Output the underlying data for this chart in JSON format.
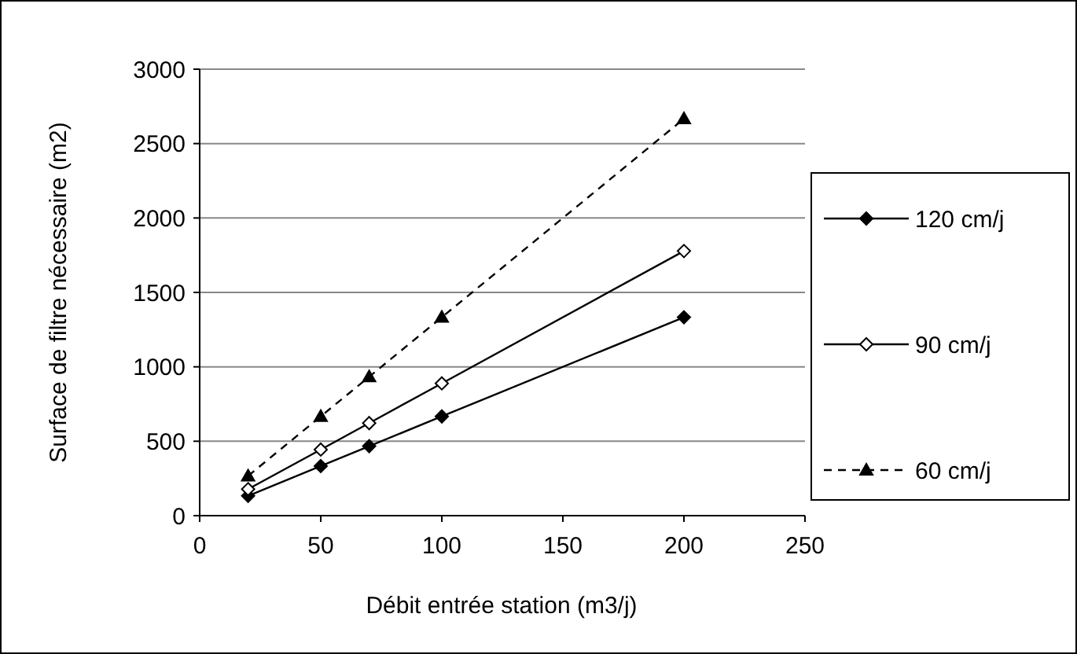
{
  "chart_data": {
    "type": "line",
    "xlabel": "Débit entrée station (m3/j)",
    "ylabel": "Surface de filtre nécessaire (m2)",
    "x": [
      20,
      50,
      70,
      100,
      200
    ],
    "series": [
      {
        "name": "120 cm/j",
        "color": "#000000",
        "marker": "diamond",
        "line_style": "solid",
        "values": [
          133,
          333,
          467,
          667,
          1333
        ]
      },
      {
        "name": "90 cm/j",
        "color": "#000000",
        "marker": "diamond_open",
        "line_style": "solid",
        "values": [
          178,
          444,
          622,
          889,
          1778
        ]
      },
      {
        "name": "60 cm/j",
        "color": "#000000",
        "marker": "triangle",
        "line_style": "dashed",
        "values": [
          267,
          667,
          933,
          1333,
          2667
        ]
      }
    ],
    "xlim": [
      0,
      250
    ],
    "xticks": [
      0,
      50,
      100,
      150,
      200,
      250
    ],
    "ylim": [
      0,
      3000
    ],
    "yticks": [
      0,
      500,
      1000,
      1500,
      2000,
      2500,
      3000
    ],
    "grid": "y",
    "legend": "right"
  }
}
